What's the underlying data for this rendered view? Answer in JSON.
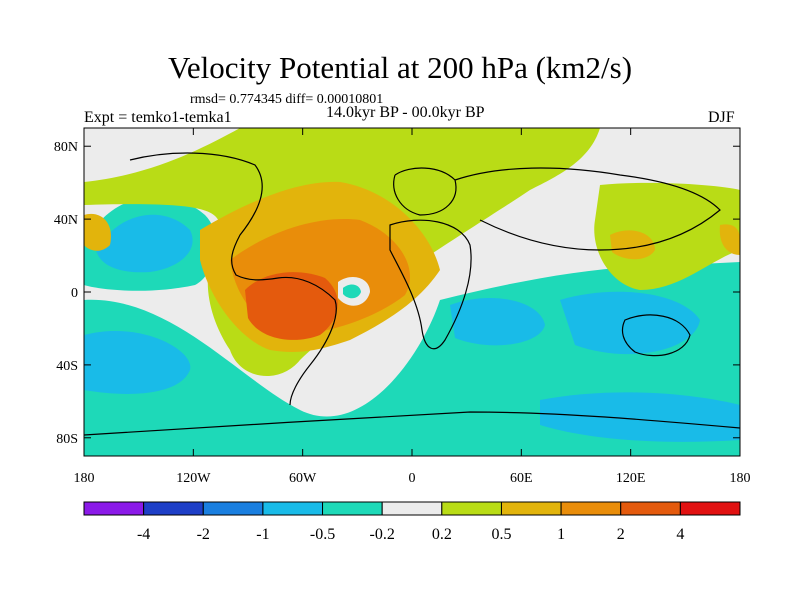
{
  "title": "Velocity Potential at 200 hPa (km2/s)",
  "stats": "rmsd= 0.774345 diff= 0.00010801",
  "experiment": "Expt = temko1-temka1",
  "period": "14.0kyr BP - 00.0kyr BP",
  "season": "DJF",
  "lat_ticks": [
    {
      "label": "80N",
      "value": 80
    },
    {
      "label": "40N",
      "value": 40
    },
    {
      "label": "0",
      "value": 0
    },
    {
      "label": "40S",
      "value": -40
    },
    {
      "label": "80S",
      "value": -80
    }
  ],
  "lon_ticks": [
    {
      "label": "180",
      "value": -180
    },
    {
      "label": "120W",
      "value": -120
    },
    {
      "label": "60W",
      "value": -60
    },
    {
      "label": "0",
      "value": 0
    },
    {
      "label": "60E",
      "value": 60
    },
    {
      "label": "120E",
      "value": 120
    },
    {
      "label": "180",
      "value": 180
    }
  ],
  "colorbar": {
    "colors": [
      "#8b1ae8",
      "#1e3fc7",
      "#1a7fe0",
      "#19bbe8",
      "#1ed9b8",
      "#ececec",
      "#b9dc16",
      "#e2b40c",
      "#e98d0a",
      "#e45a0d",
      "#e11111"
    ],
    "labels": [
      "-4",
      "-2",
      "-1",
      "-0.5",
      "-0.2",
      "0.2",
      "0.5",
      "1",
      "2",
      "4"
    ]
  }
}
